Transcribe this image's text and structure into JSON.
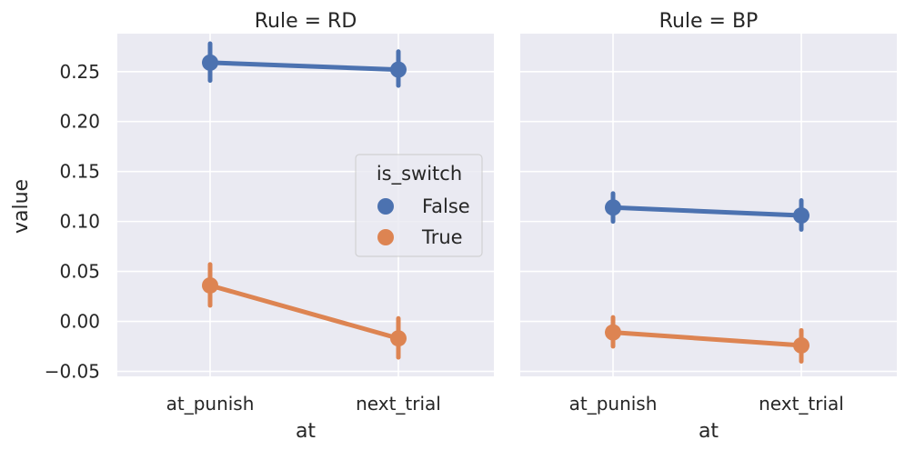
{
  "chart_data": {
    "type": "line",
    "facet_variable": "Rule",
    "xlabel": "at",
    "ylabel": "value",
    "categories": [
      "at_punish",
      "next_trial"
    ],
    "ylim": [
      -0.055,
      0.288
    ],
    "y_ticks": [
      -0.05,
      0.0,
      0.05,
      0.1,
      0.15,
      0.2,
      0.25
    ],
    "y_tick_labels": [
      "−0.05",
      "0.00",
      "0.05",
      "0.10",
      "0.15",
      "0.20",
      "0.25"
    ],
    "grid": true,
    "legend": {
      "title": "is_switch",
      "placement": "inside first panel, right-center",
      "entries": [
        {
          "label": "False",
          "color": "#4c72b0"
        },
        {
          "label": "True",
          "color": "#dd8452"
        }
      ]
    },
    "panels": [
      {
        "title": "Rule = RD",
        "series": [
          {
            "name": "False",
            "color": "#4c72b0",
            "values": [
              0.259,
              0.252
            ],
            "ci_low": [
              0.241,
              0.236
            ],
            "ci_high": [
              0.278,
              0.27
            ]
          },
          {
            "name": "True",
            "color": "#dd8452",
            "values": [
              0.036,
              -0.017
            ],
            "ci_low": [
              0.016,
              -0.036
            ],
            "ci_high": [
              0.057,
              0.003
            ]
          }
        ]
      },
      {
        "title": "Rule = BP",
        "series": [
          {
            "name": "False",
            "color": "#4c72b0",
            "values": [
              0.114,
              0.106
            ],
            "ci_low": [
              0.1,
              0.092
            ],
            "ci_high": [
              0.128,
              0.121
            ]
          },
          {
            "name": "True",
            "color": "#dd8452",
            "values": [
              -0.011,
              -0.024
            ],
            "ci_low": [
              -0.025,
              -0.04
            ],
            "ci_high": [
              0.004,
              -0.009
            ]
          }
        ]
      }
    ]
  }
}
